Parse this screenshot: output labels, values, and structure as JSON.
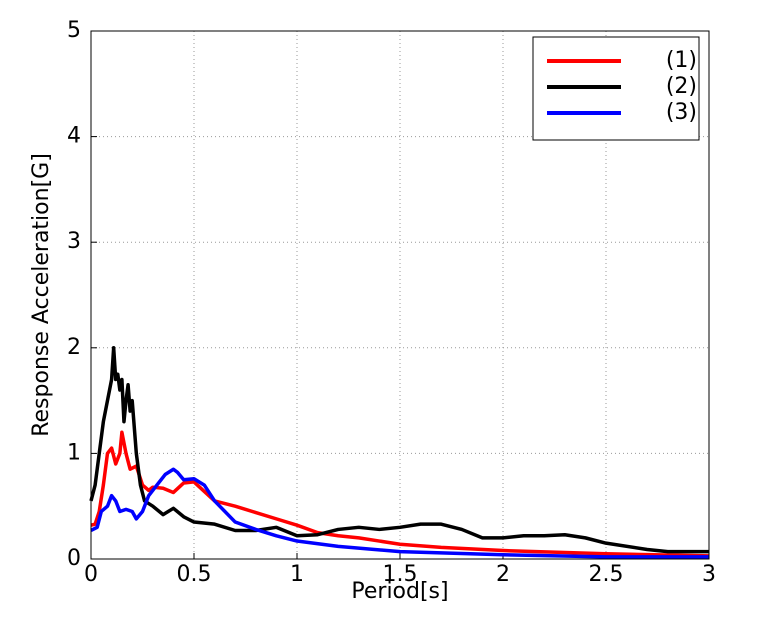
{
  "chart_data": {
    "type": "line",
    "x_label": "Period[s]",
    "y_label": "Response Acceleration[G]",
    "xlim": [
      0,
      3
    ],
    "ylim": [
      0,
      5
    ],
    "xticks": [
      0,
      0.5,
      1,
      1.5,
      2,
      2.5,
      3
    ],
    "yticks": [
      0,
      1,
      2,
      3,
      4,
      5
    ],
    "grid": true,
    "legend": "upper right",
    "series": [
      {
        "name": "(1)",
        "color": "#ff0000",
        "x": [
          0,
          0.02,
          0.04,
          0.06,
          0.08,
          0.1,
          0.12,
          0.14,
          0.15,
          0.17,
          0.19,
          0.22,
          0.25,
          0.28,
          0.3,
          0.35,
          0.4,
          0.45,
          0.5,
          0.6,
          0.7,
          0.8,
          0.9,
          1.0,
          1.1,
          1.2,
          1.3,
          1.4,
          1.5,
          1.7,
          2.0,
          2.5,
          3.0
        ],
        "values": [
          0.32,
          0.33,
          0.45,
          0.7,
          1.0,
          1.05,
          0.9,
          1.0,
          1.2,
          1.0,
          0.85,
          0.88,
          0.7,
          0.65,
          0.68,
          0.67,
          0.63,
          0.72,
          0.73,
          0.55,
          0.5,
          0.44,
          0.38,
          0.32,
          0.25,
          0.22,
          0.2,
          0.17,
          0.14,
          0.11,
          0.08,
          0.05,
          0.03
        ]
      },
      {
        "name": "(2)",
        "color": "#000000",
        "x": [
          0,
          0.02,
          0.04,
          0.06,
          0.08,
          0.1,
          0.11,
          0.12,
          0.13,
          0.14,
          0.15,
          0.16,
          0.17,
          0.18,
          0.19,
          0.2,
          0.22,
          0.24,
          0.26,
          0.3,
          0.35,
          0.4,
          0.45,
          0.5,
          0.6,
          0.7,
          0.8,
          0.9,
          1.0,
          1.1,
          1.2,
          1.3,
          1.4,
          1.5,
          1.6,
          1.7,
          1.8,
          1.9,
          2.0,
          2.1,
          2.2,
          2.3,
          2.4,
          2.5,
          2.7,
          2.8,
          3.0
        ],
        "values": [
          0.55,
          0.7,
          1.0,
          1.3,
          1.5,
          1.7,
          2.0,
          1.7,
          1.75,
          1.6,
          1.7,
          1.3,
          1.5,
          1.65,
          1.4,
          1.5,
          1.0,
          0.7,
          0.55,
          0.5,
          0.42,
          0.48,
          0.4,
          0.35,
          0.33,
          0.27,
          0.27,
          0.3,
          0.22,
          0.23,
          0.28,
          0.3,
          0.28,
          0.3,
          0.33,
          0.33,
          0.28,
          0.2,
          0.2,
          0.22,
          0.22,
          0.23,
          0.2,
          0.15,
          0.09,
          0.07,
          0.07
        ]
      },
      {
        "name": "(3)",
        "color": "#0000ff",
        "x": [
          0,
          0.03,
          0.05,
          0.08,
          0.1,
          0.12,
          0.14,
          0.17,
          0.2,
          0.22,
          0.25,
          0.28,
          0.32,
          0.36,
          0.4,
          0.42,
          0.45,
          0.5,
          0.55,
          0.6,
          0.7,
          0.8,
          0.9,
          1.0,
          1.2,
          1.5,
          2.0,
          2.5,
          3.0
        ],
        "values": [
          0.27,
          0.3,
          0.45,
          0.5,
          0.6,
          0.55,
          0.45,
          0.47,
          0.45,
          0.38,
          0.45,
          0.6,
          0.7,
          0.8,
          0.85,
          0.82,
          0.75,
          0.76,
          0.7,
          0.55,
          0.35,
          0.28,
          0.22,
          0.17,
          0.12,
          0.07,
          0.04,
          0.02,
          0.02
        ]
      }
    ]
  }
}
